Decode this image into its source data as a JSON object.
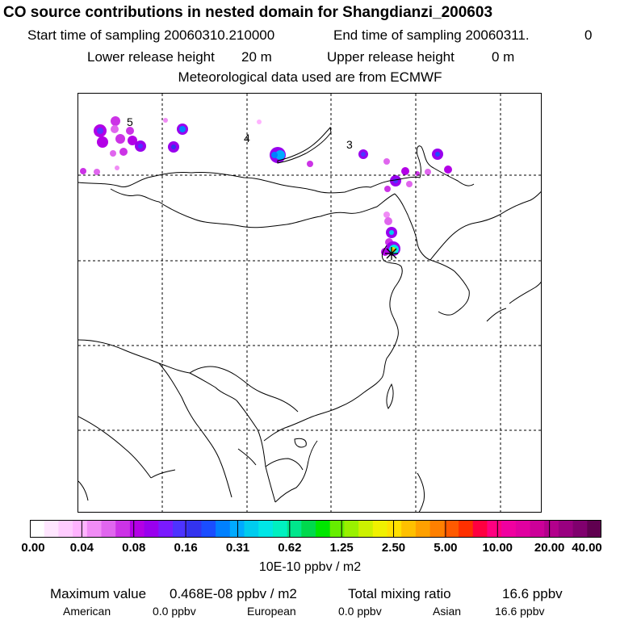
{
  "header": {
    "title": "CO  source contributions in nested domain for Shangdianzi_200603",
    "start_label": "Start time of sampling 20060310.210000",
    "end_label": "End time of sampling 20060311.",
    "end_value": "0",
    "lower_release_label": "Lower release height",
    "lower_release_value": "20 m",
    "upper_release_label": "Upper release height",
    "upper_release_value": "0 m",
    "met_data": "Meteorological data used are from ECMWF"
  },
  "map": {
    "day_labels": [
      "5",
      "4",
      "3"
    ],
    "station_marker": "star-marker",
    "colors": {
      "coast": "#000000",
      "grid": "#000000"
    }
  },
  "colorbar": {
    "units": "10E-10 ppbv / m2",
    "tick_labels": [
      "0.00",
      "0.04",
      "0.08",
      "0.16",
      "0.31",
      "0.62",
      "1.25",
      "2.50",
      "5.00",
      "10.00",
      "20.00",
      "40.00"
    ],
    "colors": [
      "#ffffff",
      "#ffe6ff",
      "#ffccff",
      "#ffb3ff",
      "#f08cf5",
      "#e066ee",
      "#cc33e6",
      "#b300e6",
      "#9900ee",
      "#7a1aff",
      "#4d33ff",
      "#3333ee",
      "#1a4dff",
      "#0080ff",
      "#00aaff",
      "#00ccee",
      "#00e6e6",
      "#00f0c0",
      "#00e68c",
      "#00d94d",
      "#00e600",
      "#66ee00",
      "#99f000",
      "#ccf000",
      "#f0f000",
      "#ffe000",
      "#ffc000",
      "#ffa000",
      "#ff8000",
      "#ff5a00",
      "#ff3000",
      "#ff0040",
      "#ff0080",
      "#f000a0",
      "#e000a0",
      "#cc0099",
      "#b3008c",
      "#990080",
      "#80006e",
      "#600050"
    ]
  },
  "footer": {
    "max_label": "Maximum value",
    "max_value": "0.468E-08 ppbv / m2",
    "total_label": "Total mixing ratio",
    "total_value": "16.6 ppbv",
    "american_label": "American",
    "american_value": "0.0 ppbv",
    "european_label": "European",
    "european_value": "0.0 ppbv",
    "asian_label": "Asian",
    "asian_value": "16.6 ppbv"
  }
}
